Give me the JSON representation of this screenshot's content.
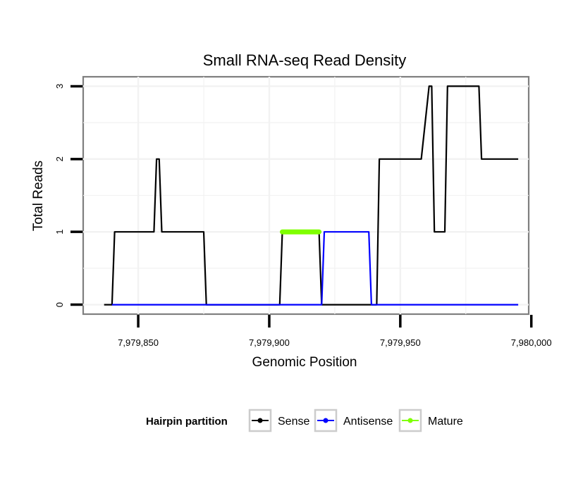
{
  "chart_data": {
    "type": "line",
    "title": "Small RNA-seq Read Density",
    "xlabel": "Genomic Position",
    "ylabel": "Total Reads",
    "xlim": [
      7979829,
      7979999
    ],
    "ylim": [
      -0.13,
      3.13
    ],
    "x_ticks": [
      7979850,
      7979900,
      7979950,
      7980000
    ],
    "x_tick_labels": [
      "7,979,850",
      "7,979,900",
      "7,979,950",
      "7,980,000"
    ],
    "y_ticks": [
      0,
      1,
      2,
      3
    ],
    "y_tick_labels": [
      "0",
      "1",
      "2",
      "3"
    ],
    "grid": true,
    "legend": {
      "title": "Hairpin partition",
      "position": "bottom",
      "entries": [
        {
          "name": "Sense",
          "color": "#000000"
        },
        {
          "name": "Antisense",
          "color": "#0000ff"
        },
        {
          "name": "Mature",
          "color": "#7fff00"
        }
      ]
    },
    "series": [
      {
        "name": "Sense",
        "color": "#000000",
        "x": [
          7979837,
          7979840,
          7979841,
          7979856,
          7979857,
          7979858,
          7979859,
          7979875,
          7979876,
          7979904,
          7979905,
          7979919,
          7979920,
          7979939,
          7979941,
          7979942,
          7979958,
          7979961,
          7979962,
          7979963,
          7979964,
          7979967,
          7979968,
          7979970,
          7979980,
          7979981,
          7979995
        ],
        "values": [
          0,
          0,
          1,
          1,
          2,
          2,
          1,
          1,
          0,
          0,
          1,
          1,
          0,
          0,
          0,
          2,
          2,
          3,
          3,
          1,
          1,
          1,
          3,
          3,
          3,
          2,
          2
        ]
      },
      {
        "name": "Antisense",
        "color": "#0000ff",
        "x": [
          7979840,
          7979920,
          7979921,
          7979938,
          7979939,
          7979995
        ],
        "values": [
          0,
          0,
          1,
          1,
          0,
          0
        ]
      },
      {
        "name": "Mature",
        "color": "#7fff00",
        "x": [
          7979905,
          7979919
        ],
        "values": [
          1,
          1
        ]
      }
    ]
  }
}
